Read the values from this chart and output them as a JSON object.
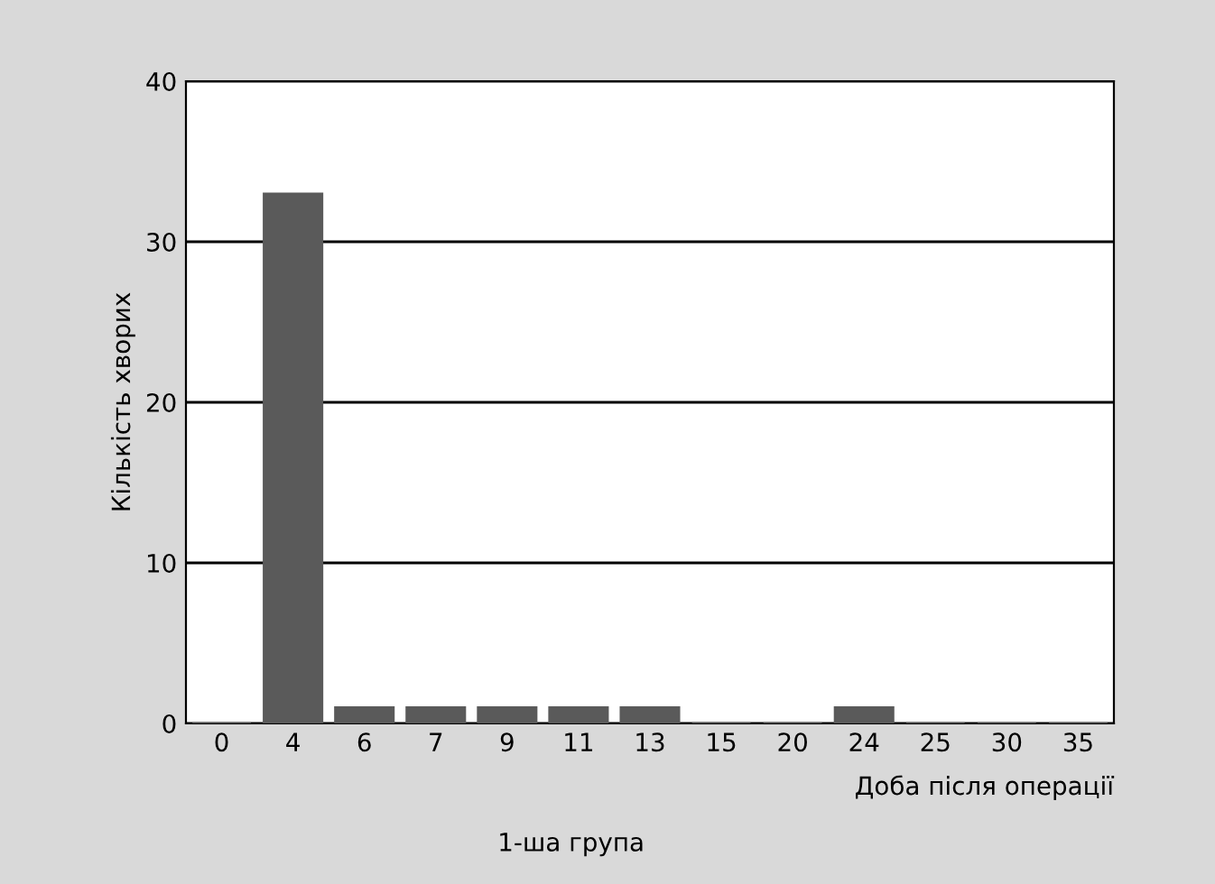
{
  "chart_data": {
    "type": "bar",
    "xlabel": "Доба після операції",
    "ylabel": "Кількість хворих",
    "categories": [
      "0",
      "4",
      "6",
      "7",
      "9",
      "11",
      "13",
      "15",
      "20",
      "24",
      "25",
      "30",
      "35"
    ],
    "values": [
      0,
      33,
      1,
      1,
      1,
      1,
      1,
      0,
      0,
      1,
      0,
      0,
      0
    ],
    "color": "#5a5a5a",
    "ylim": [
      0,
      40
    ],
    "yticks": [
      0,
      10,
      20,
      30,
      40
    ],
    "grid": "y",
    "annotations": [
      "1-ша група"
    ]
  }
}
